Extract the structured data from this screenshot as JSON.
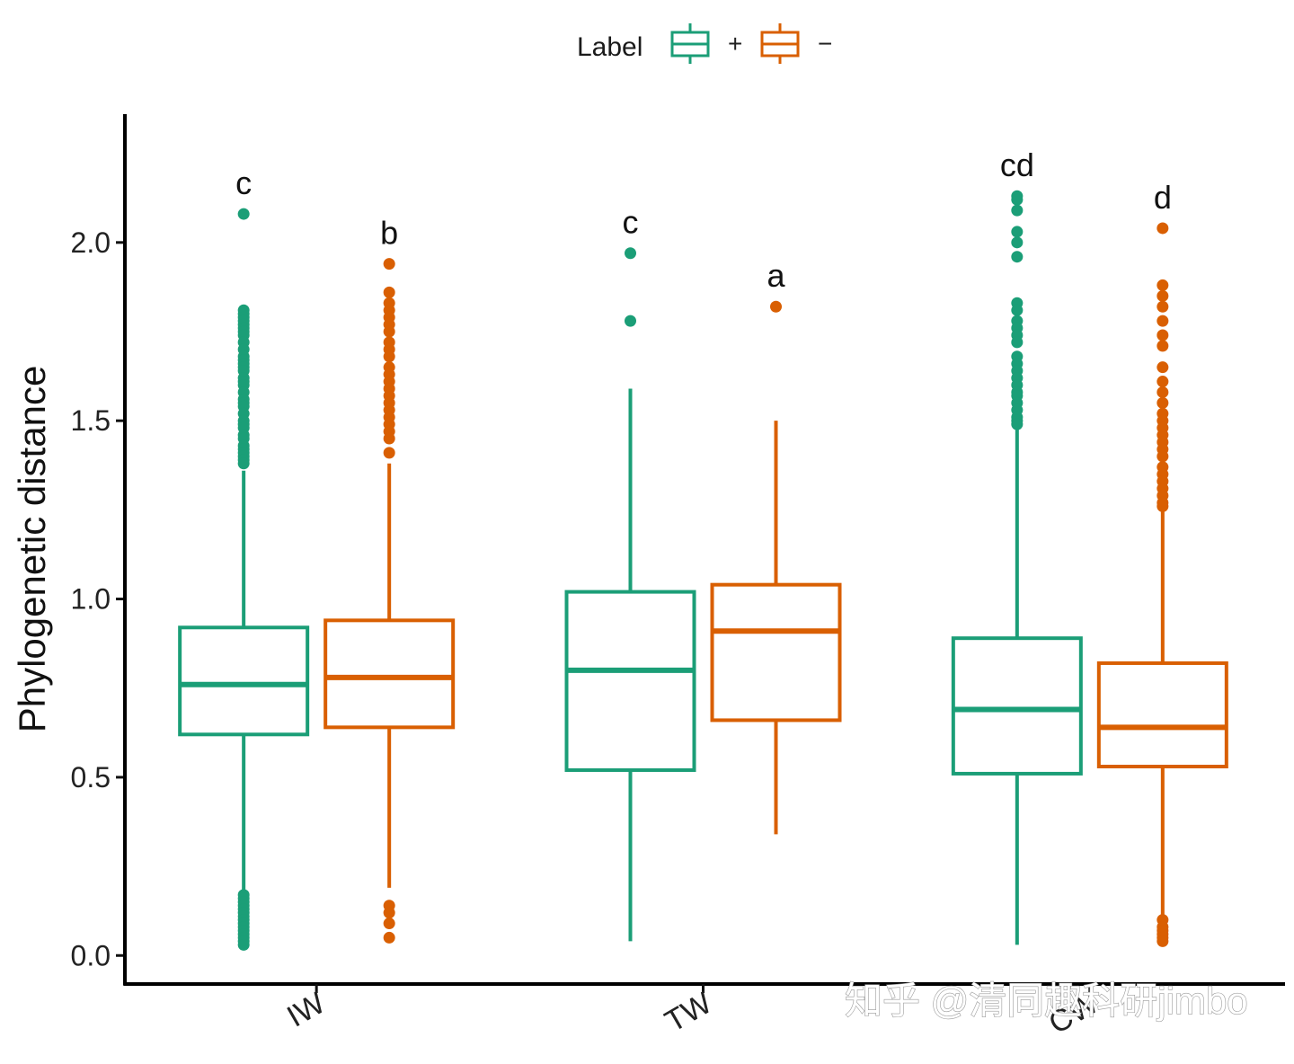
{
  "chart_data": {
    "type": "box",
    "title": "",
    "xlabel": "",
    "ylabel": "Phylogenetic distance",
    "ylim": [
      -0.08,
      2.36
    ],
    "yticks": [
      0.0,
      0.5,
      1.0,
      1.5,
      2.0
    ],
    "ytick_labels": [
      "0.0",
      "0.5",
      "1.0",
      "1.5",
      "2.0"
    ],
    "categories": [
      "IW",
      "TW",
      "CW"
    ],
    "legend": {
      "title": "Label",
      "position": "top-center",
      "entries": [
        {
          "label": "+",
          "color": "#1b9e77"
        },
        {
          "label": "−",
          "color": "#d95f02"
        }
      ]
    },
    "series": [
      {
        "name": "+",
        "color": "#1b9e77",
        "boxes": [
          {
            "category": "IW",
            "q1": 0.62,
            "median": 0.76,
            "q3": 0.92,
            "whisker_low": 0.18,
            "whisker_high": 1.36,
            "letter": "c",
            "outliers": [
              2.08,
              1.81,
              1.8,
              1.79,
              1.78,
              1.77,
              1.76,
              1.75,
              1.74,
              1.72,
              1.7,
              1.68,
              1.67,
              1.66,
              1.65,
              1.64,
              1.62,
              1.61,
              1.6,
              1.58,
              1.56,
              1.55,
              1.54,
              1.52,
              1.5,
              1.49,
              1.48,
              1.46,
              1.45,
              1.43,
              1.42,
              1.41,
              1.4,
              1.39,
              1.38,
              0.17,
              0.16,
              0.15,
              0.14,
              0.13,
              0.12,
              0.11,
              0.1,
              0.09,
              0.08,
              0.07,
              0.06,
              0.05,
              0.04,
              0.03
            ]
          },
          {
            "category": "TW",
            "q1": 0.52,
            "median": 0.8,
            "q3": 1.02,
            "whisker_low": 0.04,
            "whisker_high": 1.59,
            "letter": "c",
            "outliers": [
              1.97,
              1.78
            ]
          },
          {
            "category": "CW",
            "q1": 0.51,
            "median": 0.69,
            "q3": 0.89,
            "whisker_low": 0.03,
            "whisker_high": 1.48,
            "letter": "cd",
            "outliers": [
              2.13,
              2.12,
              2.09,
              2.03,
              2.0,
              1.96,
              1.83,
              1.81,
              1.78,
              1.76,
              1.74,
              1.72,
              1.68,
              1.66,
              1.64,
              1.62,
              1.6,
              1.58,
              1.57,
              1.55,
              1.53,
              1.51,
              1.5,
              1.49
            ]
          }
        ]
      },
      {
        "name": "−",
        "color": "#d95f02",
        "boxes": [
          {
            "category": "IW",
            "q1": 0.64,
            "median": 0.78,
            "q3": 0.94,
            "whisker_low": 0.19,
            "whisker_high": 1.38,
            "letter": "b",
            "outliers": [
              1.94,
              1.86,
              1.83,
              1.81,
              1.79,
              1.77,
              1.75,
              1.72,
              1.7,
              1.68,
              1.65,
              1.63,
              1.61,
              1.59,
              1.57,
              1.55,
              1.53,
              1.51,
              1.49,
              1.47,
              1.45,
              1.41,
              0.14,
              0.12,
              0.09,
              0.05
            ]
          },
          {
            "category": "TW",
            "q1": 0.66,
            "median": 0.91,
            "q3": 1.04,
            "whisker_low": 0.34,
            "whisker_high": 1.5,
            "letter": "a",
            "outliers": [
              1.82
            ]
          },
          {
            "category": "CW",
            "q1": 0.53,
            "median": 0.64,
            "q3": 0.82,
            "whisker_low": 0.11,
            "whisker_high": 1.25,
            "letter": "d",
            "outliers": [
              2.04,
              1.88,
              1.85,
              1.82,
              1.78,
              1.74,
              1.71,
              1.65,
              1.61,
              1.58,
              1.55,
              1.52,
              1.5,
              1.48,
              1.46,
              1.44,
              1.42,
              1.4,
              1.37,
              1.35,
              1.33,
              1.31,
              1.29,
              1.27,
              1.26,
              0.1,
              0.08,
              0.07,
              0.06,
              0.05,
              0.04
            ]
          }
        ]
      }
    ]
  },
  "watermark": {
    "text": "知乎 @清同趣科研jimbo"
  }
}
